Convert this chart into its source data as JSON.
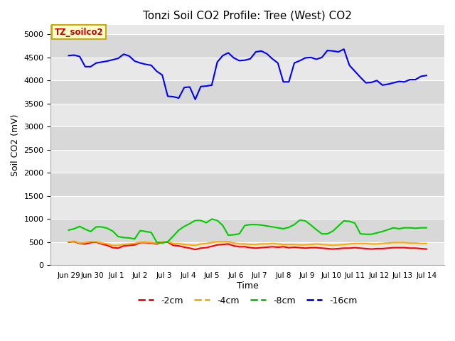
{
  "title": "Tonzi Soil CO2 Profile: Tree (West) CO2",
  "ylabel": "Soil CO2 (mV)",
  "xlabel": "Time",
  "ylim": [
    0,
    5200
  ],
  "yticks": [
    0,
    500,
    1000,
    1500,
    2000,
    2500,
    3000,
    3500,
    4000,
    4500,
    5000
  ],
  "background_color": "#e8e8e8",
  "band_color_dark": "#d8d8d8",
  "band_color_light": "#e8e8e8",
  "legend_label": "TZ_soilco2",
  "legend_box_color": "#ffffcc",
  "legend_box_edge": "#ccaa00",
  "legend_text_color": "#cc0000",
  "x_labels": [
    "Jun 29",
    "Jun 30",
    "Jul 1",
    "Jul 2",
    "Jul 3",
    "Jul 4",
    "Jul 5",
    "Jul 6",
    "Jul 7",
    "Jul 8",
    "Jul 9",
    "Jul 10",
    "Jul 11",
    "Jul 12",
    "Jul 13",
    "Jul 14"
  ],
  "series_order": [
    "-2cm",
    "-4cm",
    "-8cm",
    "-16cm"
  ],
  "series": {
    "-2cm": {
      "color": "#ff0000",
      "values": [
        500,
        510,
        470,
        460,
        490,
        500,
        460,
        430,
        380,
        370,
        420,
        430,
        440,
        490,
        490,
        480,
        460,
        500,
        500,
        430,
        420,
        390,
        370,
        340,
        370,
        380,
        410,
        440,
        450,
        460,
        420,
        400,
        400,
        380,
        370,
        380,
        390,
        400,
        390,
        400,
        380,
        390,
        380,
        370,
        380,
        380,
        370,
        360,
        350,
        360,
        370,
        370,
        380,
        370,
        360,
        350,
        360,
        360,
        370,
        380,
        380,
        380,
        370,
        370,
        360,
        350
      ]
    },
    "-4cm": {
      "color": "#ffaa00",
      "values": [
        510,
        520,
        480,
        490,
        510,
        510,
        480,
        460,
        430,
        430,
        450,
        460,
        470,
        500,
        500,
        490,
        480,
        510,
        510,
        470,
        470,
        450,
        440,
        430,
        460,
        470,
        490,
        510,
        510,
        510,
        480,
        460,
        460,
        450,
        450,
        460,
        460,
        470,
        460,
        450,
        450,
        450,
        440,
        440,
        450,
        460,
        450,
        440,
        430,
        440,
        450,
        460,
        470,
        470,
        470,
        460,
        460,
        470,
        480,
        490,
        490,
        490,
        480,
        480,
        470,
        470
      ]
    },
    "-8cm": {
      "color": "#00cc00",
      "values": [
        760,
        790,
        840,
        780,
        730,
        830,
        830,
        800,
        740,
        620,
        600,
        590,
        570,
        750,
        730,
        710,
        500,
        480,
        510,
        630,
        760,
        840,
        900,
        970,
        970,
        920,
        1000,
        970,
        860,
        650,
        660,
        680,
        860,
        880,
        880,
        870,
        850,
        830,
        810,
        790,
        820,
        880,
        980,
        960,
        870,
        770,
        680,
        680,
        740,
        850,
        960,
        950,
        910,
        680,
        670,
        670,
        700,
        730,
        770,
        810,
        790,
        810,
        810,
        800,
        810,
        810
      ]
    },
    "-16cm": {
      "color": "#0000ff",
      "values": [
        4540,
        4550,
        4520,
        4300,
        4300,
        4380,
        4400,
        4420,
        4450,
        4480,
        4570,
        4530,
        4420,
        4380,
        4350,
        4330,
        4200,
        4120,
        3660,
        3650,
        3620,
        3850,
        3860,
        3590,
        3870,
        3880,
        3900,
        4400,
        4540,
        4600,
        4490,
        4430,
        4440,
        4470,
        4620,
        4640,
        4580,
        4470,
        4380,
        3970,
        3970,
        4380,
        4430,
        4490,
        4500,
        4460,
        4500,
        4650,
        4640,
        4620,
        4680,
        4330,
        4200,
        4070,
        3950,
        3960,
        4000,
        3900,
        3920,
        3950,
        3980,
        3970,
        4020,
        4020,
        4090,
        4110
      ]
    }
  }
}
